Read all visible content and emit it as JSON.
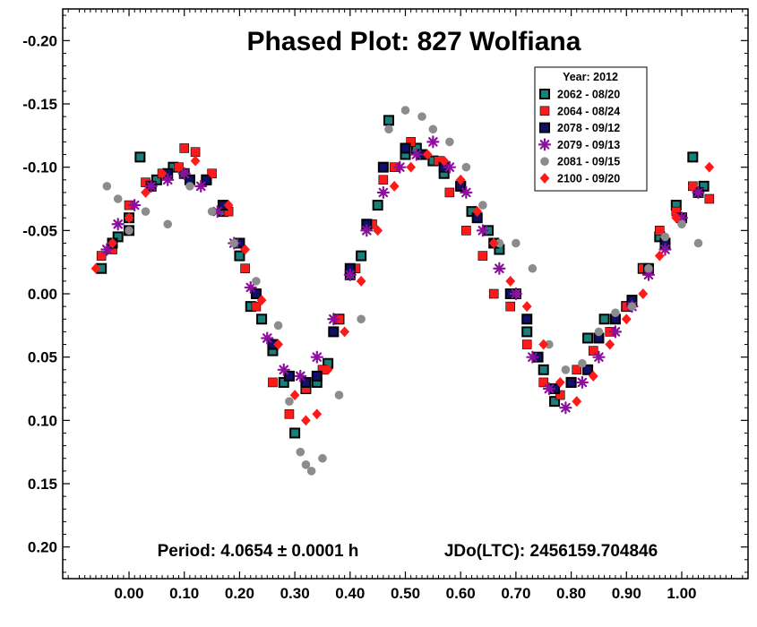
{
  "chart_data": {
    "type": "scatter",
    "title": "Phased Plot: 827 Wolfiana",
    "xlabel": "",
    "ylabel": "",
    "xlim": [
      -0.12,
      1.12
    ],
    "ylim": [
      0.225,
      -0.225
    ],
    "x_ticks": [
      "0.00",
      "0.10",
      "0.20",
      "0.30",
      "0.40",
      "0.50",
      "0.60",
      "0.70",
      "0.80",
      "0.90",
      "1.00"
    ],
    "y_ticks": [
      "-0.20",
      "-0.15",
      "-0.10",
      "-0.05",
      "0.00",
      "0.05",
      "0.10",
      "0.15",
      "0.20"
    ],
    "y_inverted": true,
    "grid": false,
    "legend_position": "top-right",
    "legend_title": "Year: 2012",
    "period_text": "Period: 4.0654 ± 0.0001 h",
    "epoch_text": "JDo(LTC): 2456159.704846",
    "series": [
      {
        "name": "2062 - 08/20",
        "marker": "square-outline",
        "color": "#1b7f79",
        "edge": "#000000",
        "x": [
          -0.05,
          -0.02,
          0.0,
          0.02,
          0.05,
          0.08,
          0.1,
          0.14,
          0.17,
          0.2,
          0.22,
          0.24,
          0.26,
          0.28,
          0.3,
          0.32,
          0.34,
          0.36,
          0.38,
          0.4,
          0.42,
          0.45,
          0.47,
          0.5,
          0.52,
          0.55,
          0.57,
          0.6,
          0.62,
          0.65,
          0.67,
          0.7,
          0.72,
          0.75,
          0.77,
          0.8,
          0.83,
          0.86,
          0.9,
          0.93,
          0.96,
          0.99,
          1.02,
          1.04
        ],
        "y": [
          -0.02,
          -0.045,
          -0.06,
          -0.108,
          -0.09,
          -0.1,
          -0.095,
          -0.09,
          -0.065,
          -0.03,
          0.01,
          0.02,
          0.045,
          0.07,
          0.11,
          0.075,
          0.07,
          0.055,
          0.02,
          -0.015,
          -0.03,
          -0.07,
          -0.137,
          -0.11,
          -0.115,
          -0.105,
          -0.095,
          -0.085,
          -0.065,
          -0.05,
          -0.035,
          0.0,
          0.03,
          0.06,
          0.085,
          0.07,
          0.035,
          0.02,
          0.01,
          -0.02,
          -0.045,
          -0.07,
          -0.108,
          -0.085
        ]
      },
      {
        "name": "2064 - 08/24",
        "marker": "square",
        "color": "#ff1a1a",
        "edge": "#000000",
        "x": [
          -0.05,
          -0.03,
          0.0,
          0.03,
          0.06,
          0.09,
          0.1,
          0.12,
          0.15,
          0.18,
          0.21,
          0.23,
          0.26,
          0.29,
          0.32,
          0.35,
          0.38,
          0.41,
          0.44,
          0.46,
          0.48,
          0.51,
          0.53,
          0.56,
          0.58,
          0.61,
          0.64,
          0.66,
          0.69,
          0.72,
          0.75,
          0.78,
          0.81,
          0.84,
          0.87,
          0.9,
          0.93,
          0.96,
          0.99,
          1.02,
          1.05
        ],
        "y": [
          -0.03,
          -0.035,
          -0.07,
          -0.088,
          -0.095,
          -0.1,
          -0.115,
          -0.112,
          -0.095,
          -0.065,
          -0.02,
          0.01,
          0.07,
          0.095,
          0.075,
          0.06,
          0.02,
          -0.02,
          -0.055,
          -0.09,
          -0.1,
          -0.12,
          -0.11,
          -0.105,
          -0.08,
          -0.05,
          -0.03,
          0.0,
          0.01,
          0.04,
          0.07,
          0.08,
          0.06,
          0.045,
          0.03,
          0.01,
          -0.02,
          -0.05,
          -0.065,
          -0.085,
          -0.075
        ]
      },
      {
        "name": "2078 - 09/12",
        "marker": "square-outline",
        "color": "#10106a",
        "edge": "#000000",
        "x": [
          -0.03,
          0.0,
          0.04,
          0.07,
          0.11,
          0.14,
          0.17,
          0.2,
          0.23,
          0.26,
          0.29,
          0.32,
          0.34,
          0.37,
          0.4,
          0.43,
          0.46,
          0.5,
          0.53,
          0.57,
          0.6,
          0.63,
          0.66,
          0.69,
          0.72,
          0.74,
          0.77,
          0.8,
          0.83,
          0.85,
          0.88,
          0.91,
          0.94,
          0.97,
          1.0,
          1.03
        ],
        "y": [
          -0.04,
          -0.05,
          -0.085,
          -0.095,
          -0.09,
          -0.09,
          -0.07,
          -0.04,
          0.0,
          0.04,
          0.065,
          0.07,
          0.065,
          0.03,
          -0.02,
          -0.055,
          -0.1,
          -0.115,
          -0.11,
          -0.1,
          -0.085,
          -0.06,
          -0.04,
          0.0,
          0.02,
          0.05,
          0.075,
          0.07,
          0.06,
          0.035,
          0.02,
          0.005,
          -0.02,
          -0.04,
          -0.06,
          -0.08
        ]
      },
      {
        "name": "2079 - 09/13",
        "marker": "asterisk",
        "color": "#8b109c",
        "edge": "#8b109c",
        "x": [
          -0.04,
          -0.02,
          0.01,
          0.04,
          0.07,
          0.1,
          0.13,
          0.16,
          0.19,
          0.22,
          0.25,
          0.28,
          0.31,
          0.34,
          0.37,
          0.4,
          0.43,
          0.46,
          0.49,
          0.52,
          0.55,
          0.58,
          0.61,
          0.64,
          0.67,
          0.7,
          0.73,
          0.76,
          0.79,
          0.82,
          0.85,
          0.88,
          0.91,
          0.94,
          0.97,
          1.0,
          1.03
        ],
        "y": [
          -0.035,
          -0.055,
          -0.07,
          -0.085,
          -0.09,
          -0.095,
          -0.085,
          -0.065,
          -0.04,
          -0.005,
          0.035,
          0.06,
          0.065,
          0.05,
          0.02,
          -0.015,
          -0.05,
          -0.08,
          -0.1,
          -0.11,
          -0.12,
          -0.1,
          -0.08,
          -0.05,
          -0.02,
          0.0,
          0.05,
          0.075,
          0.09,
          0.07,
          0.05,
          0.03,
          0.01,
          -0.015,
          -0.035,
          -0.06,
          -0.08
        ]
      },
      {
        "name": "2081 - 09/15",
        "marker": "circle",
        "color": "#8c8c8c",
        "edge": "#8c8c8c",
        "x": [
          -0.04,
          -0.02,
          0.0,
          0.03,
          0.07,
          0.11,
          0.15,
          0.19,
          0.23,
          0.27,
          0.29,
          0.31,
          0.32,
          0.33,
          0.35,
          0.38,
          0.42,
          0.47,
          0.5,
          0.53,
          0.55,
          0.58,
          0.61,
          0.64,
          0.67,
          0.7,
          0.73,
          0.76,
          0.79,
          0.82,
          0.85,
          0.88,
          0.91,
          0.94,
          0.97,
          1.0,
          1.03
        ],
        "y": [
          -0.085,
          -0.075,
          -0.05,
          -0.065,
          -0.055,
          -0.085,
          -0.065,
          -0.04,
          -0.01,
          0.025,
          0.085,
          0.125,
          0.135,
          0.14,
          0.13,
          0.08,
          0.02,
          -0.13,
          -0.145,
          -0.14,
          -0.13,
          -0.12,
          -0.1,
          -0.07,
          -0.04,
          -0.04,
          -0.02,
          0.04,
          0.06,
          0.055,
          0.03,
          0.015,
          0.01,
          -0.02,
          -0.045,
          -0.055,
          -0.04
        ]
      },
      {
        "name": "2100 - 09/20",
        "marker": "diamond",
        "color": "#ff1a1a",
        "edge": "#ff1a1a",
        "x": [
          -0.06,
          -0.03,
          0.0,
          0.03,
          0.06,
          0.09,
          0.12,
          0.15,
          0.18,
          0.21,
          0.24,
          0.27,
          0.3,
          0.32,
          0.34,
          0.36,
          0.39,
          0.42,
          0.45,
          0.48,
          0.51,
          0.54,
          0.57,
          0.6,
          0.63,
          0.66,
          0.69,
          0.72,
          0.75,
          0.78,
          0.81,
          0.84,
          0.87,
          0.9,
          0.93,
          0.96,
          0.99,
          1.02,
          1.05
        ],
        "y": [
          -0.02,
          -0.04,
          -0.06,
          -0.08,
          -0.095,
          -0.1,
          -0.105,
          -0.095,
          -0.07,
          -0.035,
          0.005,
          0.04,
          0.08,
          0.1,
          0.095,
          0.06,
          0.03,
          -0.01,
          -0.05,
          -0.085,
          -0.1,
          -0.11,
          -0.105,
          -0.09,
          -0.065,
          -0.04,
          -0.01,
          0.01,
          0.04,
          0.07,
          0.085,
          0.065,
          0.04,
          0.02,
          0.0,
          -0.03,
          -0.06,
          -0.085,
          -0.1
        ]
      }
    ]
  }
}
